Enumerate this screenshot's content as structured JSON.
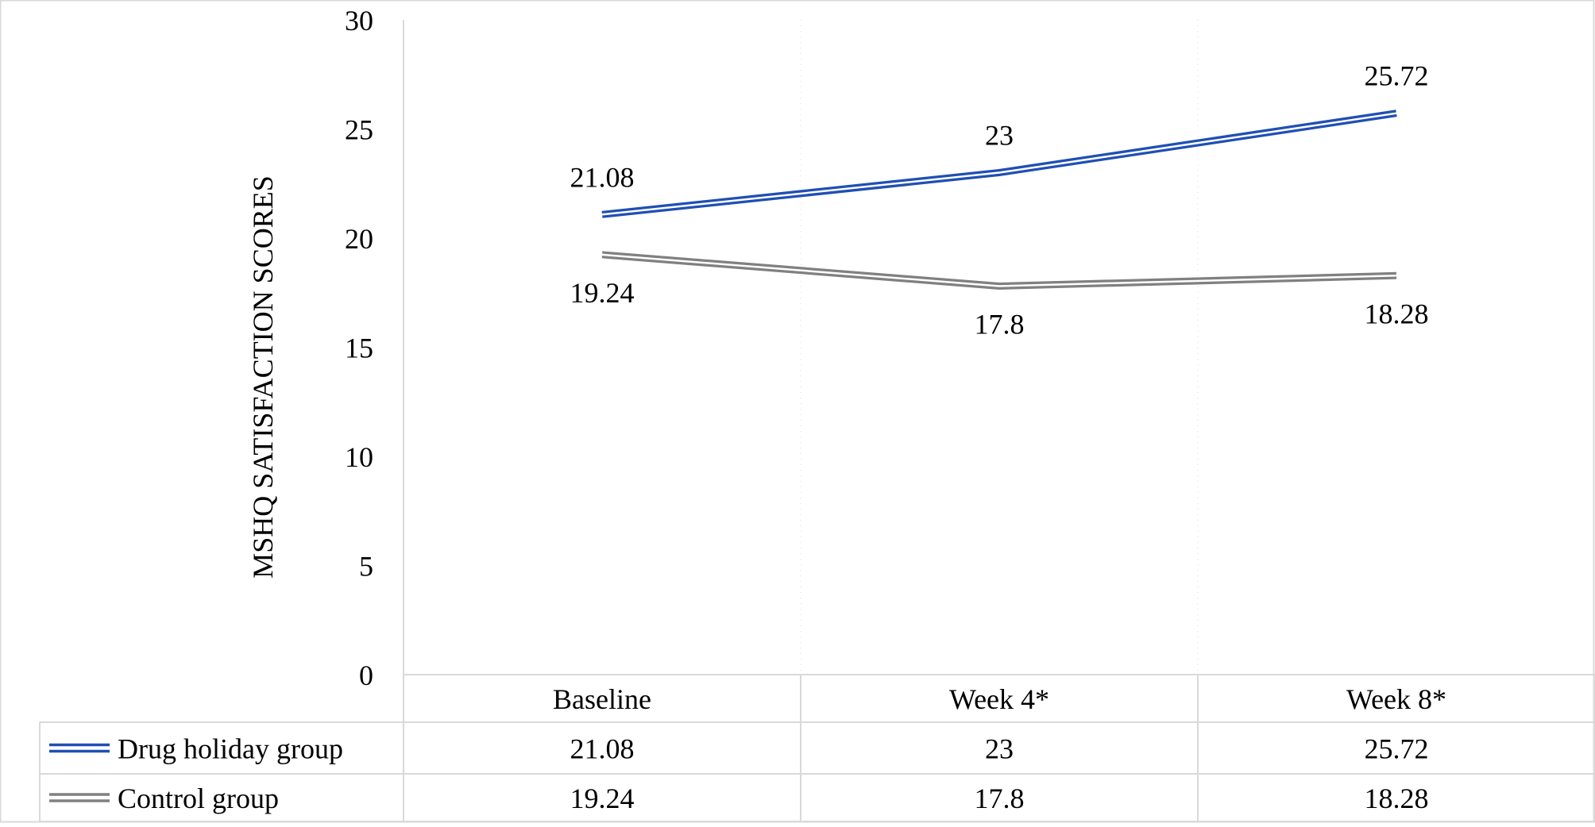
{
  "chart_data": {
    "type": "line",
    "title": "",
    "ylabel": "MSHQ SATISFACTION SCORES",
    "xlabel": "",
    "ylim": [
      0,
      30
    ],
    "yticks": [
      0,
      5,
      10,
      15,
      20,
      25,
      30
    ],
    "categories": [
      "Baseline",
      "Week 4*",
      "Week 8*"
    ],
    "grid": "vertical-dotted",
    "legend": "data-table-below",
    "series": [
      {
        "name": "Drug holiday group",
        "values": [
          21.08,
          23,
          25.72
        ],
        "color": "#1f4fb4",
        "style": "double-line"
      },
      {
        "name": "Control group",
        "values": [
          19.24,
          17.8,
          18.28
        ],
        "color": "#808080",
        "style": "double-line"
      }
    ],
    "data_labels": {
      "Drug holiday group": [
        "21.08",
        "23",
        "25.72"
      ],
      "Control group": [
        "19.24",
        "17.8",
        "18.28"
      ]
    }
  }
}
